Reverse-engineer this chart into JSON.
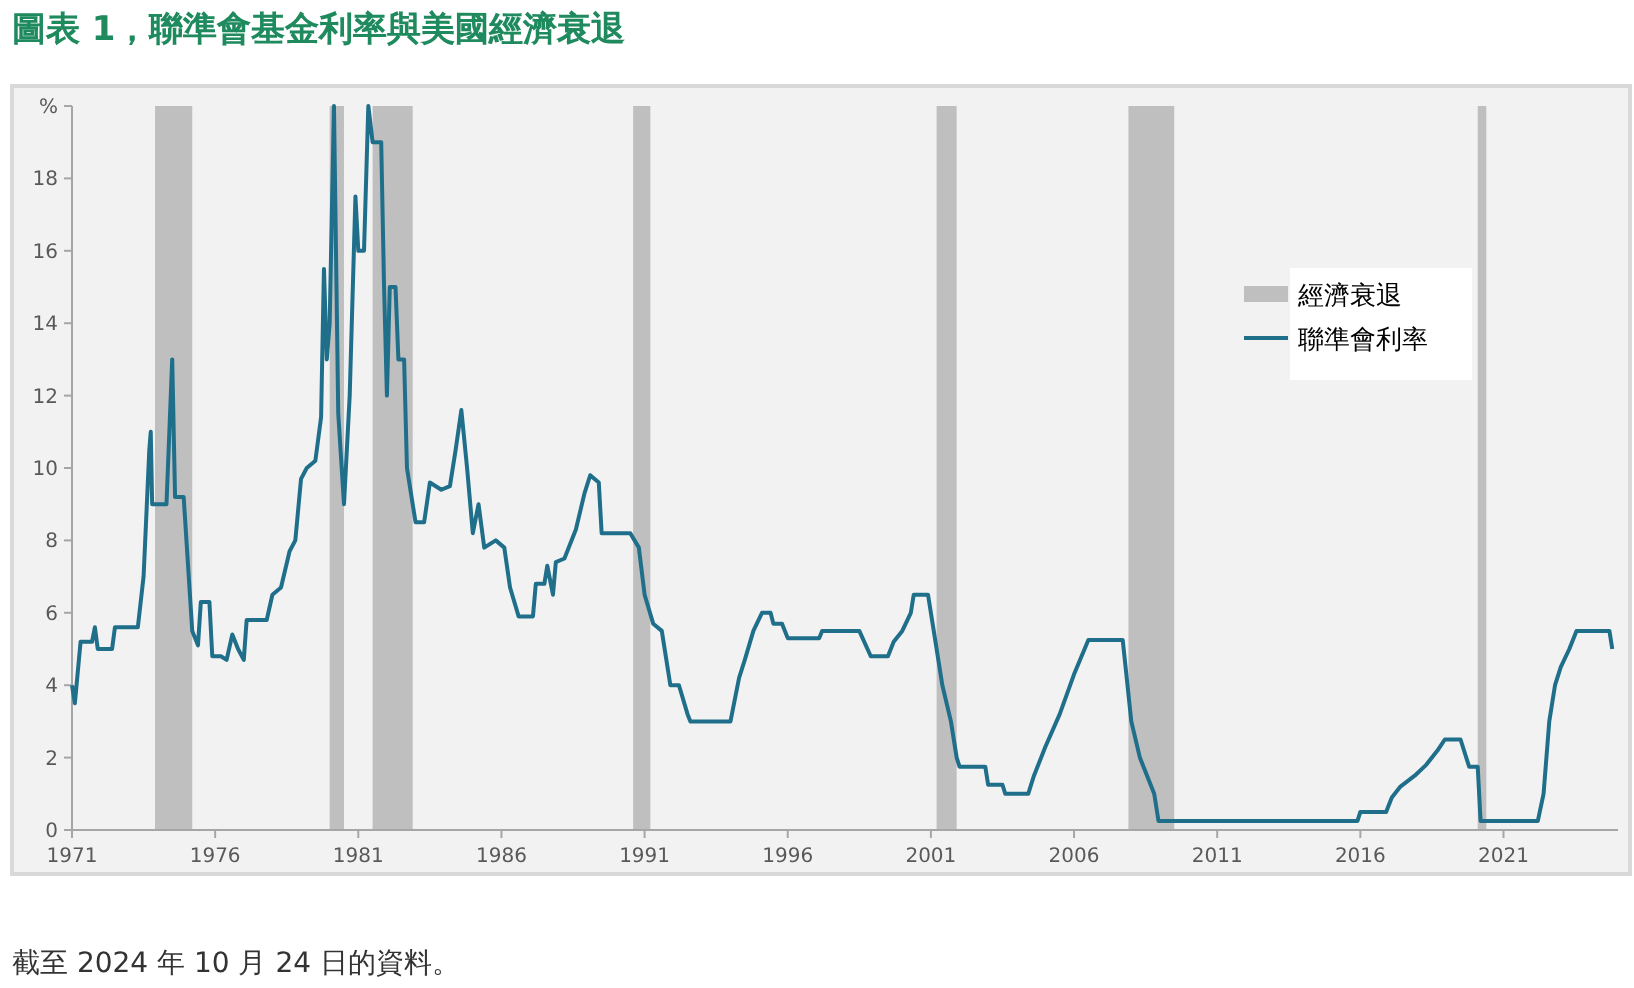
{
  "chart_data": {
    "type": "line",
    "title": "圖表 1，聯準會基金利率與美國經濟衰退",
    "annotations": [
      "截至 2024 年 10 月 24 日的資料。"
    ],
    "xlim": [
      1971,
      2025
    ],
    "xticks": [
      {
        "value": 1971,
        "label": "1971"
      },
      {
        "value": 1976,
        "label": "1976"
      },
      {
        "value": 1981,
        "label": "1981"
      },
      {
        "value": 1986,
        "label": "1986"
      },
      {
        "value": 1991,
        "label": "1991"
      },
      {
        "value": 1996,
        "label": "1996"
      },
      {
        "value": 2001,
        "label": "2001"
      },
      {
        "value": 2006,
        "label": "2006"
      },
      {
        "value": 2011,
        "label": "2011"
      },
      {
        "value": 2016,
        "label": "2016"
      },
      {
        "value": 2021,
        "label": "2021"
      }
    ],
    "ylim": [
      0,
      20
    ],
    "yticks": [
      0,
      2,
      4,
      6,
      8,
      10,
      12,
      14,
      16,
      18,
      {
        "value": 20,
        "label": "%"
      }
    ],
    "grid": false,
    "legend": "top right",
    "marker": "none",
    "line_style": "solid",
    "bands": [
      {
        "axis": "x",
        "from": 1973.9,
        "to": 1975.2,
        "color": "#bfbfbf"
      },
      {
        "axis": "x",
        "from": 1980.0,
        "to": 1980.5,
        "color": "#bfbfbf"
      },
      {
        "axis": "x",
        "from": 1981.5,
        "to": 1982.9,
        "color": "#bfbfbf"
      },
      {
        "axis": "x",
        "from": 1990.6,
        "to": 1991.2,
        "color": "#bfbfbf"
      },
      {
        "axis": "x",
        "from": 2001.2,
        "to": 2001.9,
        "color": "#bfbfbf"
      },
      {
        "axis": "x",
        "from": 2007.9,
        "to": 2009.5,
        "color": "#bfbfbf"
      },
      {
        "axis": "x",
        "from": 2020.1,
        "to": 2020.4,
        "label": "經濟衰退",
        "color": "#bfbfbf"
      }
    ],
    "series": [
      {
        "name": "聯準會利率",
        "color": "#1f6f8b",
        "x": [
          1971.0,
          1971.1,
          1971.3,
          1971.7,
          1971.8,
          1971.9,
          1972.4,
          1972.5,
          1973.3,
          1973.5,
          1973.7,
          1973.75,
          1973.8,
          1974.3,
          1974.5,
          1974.6,
          1974.9,
          1975.2,
          1975.4,
          1975.5,
          1975.8,
          1975.9,
          1976.2,
          1976.4,
          1976.6,
          1976.8,
          1977.0,
          1977.1,
          1977.8,
          1978.0,
          1978.3,
          1978.6,
          1978.8,
          1979.0,
          1979.2,
          1979.5,
          1979.7,
          1979.8,
          1979.9,
          1980.0,
          1980.15,
          1980.3,
          1980.5,
          1980.7,
          1980.9,
          1981.0,
          1981.2,
          1981.35,
          1981.5,
          1981.8,
          1981.9,
          1982.0,
          1982.1,
          1982.3,
          1982.4,
          1982.6,
          1982.7,
          1982.8,
          1983.0,
          1983.3,
          1983.5,
          1983.9,
          1984.2,
          1984.4,
          1984.6,
          1984.8,
          1985.0,
          1985.2,
          1985.4,
          1985.8,
          1986.1,
          1986.3,
          1986.6,
          1987.1,
          1987.2,
          1987.5,
          1987.6,
          1987.8,
          1987.9,
          1988.2,
          1988.6,
          1988.9,
          1989.1,
          1989.4,
          1989.5,
          1990.5,
          1990.8,
          1991.0,
          1991.3,
          1991.6,
          1991.9,
          1992.2,
          1992.5,
          1992.6,
          1994.0,
          1994.3,
          1994.5,
          1994.8,
          1995.1,
          1995.4,
          1995.5,
          1995.8,
          1996.0,
          1997.1,
          1997.2,
          1998.5,
          1998.9,
          1999.5,
          1999.7,
          2000.0,
          2000.3,
          2000.4,
          2000.9,
          2001.1,
          2001.4,
          2001.7,
          2001.9,
          2002.0,
          2002.9,
          2003.0,
          2003.5,
          2003.6,
          2004.4,
          2004.6,
          2005.0,
          2005.5,
          2006.0,
          2006.5,
          2007.7,
          2007.8,
          2008.0,
          2008.3,
          2008.8,
          2008.95,
          2015.9,
          2016.0,
          2016.9,
          2017.1,
          2017.4,
          2017.9,
          2018.3,
          2018.7,
          2018.95,
          2019.5,
          2019.8,
          2020.1,
          2020.2,
          2022.2,
          2022.4,
          2022.6,
          2022.8,
          2023.0,
          2023.3,
          2023.55,
          2024.7,
          2024.8
        ],
        "values": [
          4.0,
          3.5,
          5.2,
          5.2,
          5.6,
          5.0,
          5.0,
          5.6,
          5.6,
          7.0,
          10.5,
          11.0,
          9.0,
          9.0,
          13.0,
          9.2,
          9.2,
          5.5,
          5.1,
          6.3,
          6.3,
          4.8,
          4.8,
          4.7,
          5.4,
          5.0,
          4.7,
          5.8,
          5.8,
          6.5,
          6.7,
          7.7,
          8.0,
          9.7,
          10.0,
          10.2,
          11.4,
          15.5,
          13.0,
          14.0,
          20,
          11.5,
          9.0,
          12,
          17.5,
          16.0,
          16.0,
          20,
          19,
          19,
          15,
          12.0,
          15,
          15,
          13,
          13,
          10,
          9.5,
          8.5,
          8.5,
          9.6,
          9.4,
          9.5,
          10.5,
          11.6,
          10,
          8.2,
          9.0,
          7.8,
          8.0,
          7.8,
          6.7,
          5.9,
          5.9,
          6.8,
          6.8,
          7.3,
          6.5,
          7.4,
          7.5,
          8.3,
          9.3,
          9.8,
          9.6,
          8.2,
          8.2,
          7.8,
          6.5,
          5.7,
          5.5,
          4.0,
          4.0,
          3.2,
          3.0,
          3.0,
          4.2,
          4.7,
          5.5,
          6.0,
          6.0,
          5.7,
          5.7,
          5.3,
          5.3,
          5.5,
          5.5,
          4.8,
          4.8,
          5.2,
          5.5,
          6.0,
          6.5,
          6.5,
          5.5,
          4.0,
          3.0,
          2.0,
          1.75,
          1.75,
          1.25,
          1.25,
          1.0,
          1.0,
          1.5,
          2.3,
          3.2,
          4.3,
          5.25,
          5.25,
          4.5,
          3.0,
          2.0,
          1.0,
          0.25,
          0.25,
          0.5,
          0.5,
          0.9,
          1.2,
          1.5,
          1.8,
          2.2,
          2.5,
          2.5,
          1.75,
          1.75,
          0.25,
          0.25,
          1.0,
          3.0,
          4.0,
          4.5,
          5.0,
          5.5,
          5.5,
          5.0
        ]
      }
    ]
  }
}
